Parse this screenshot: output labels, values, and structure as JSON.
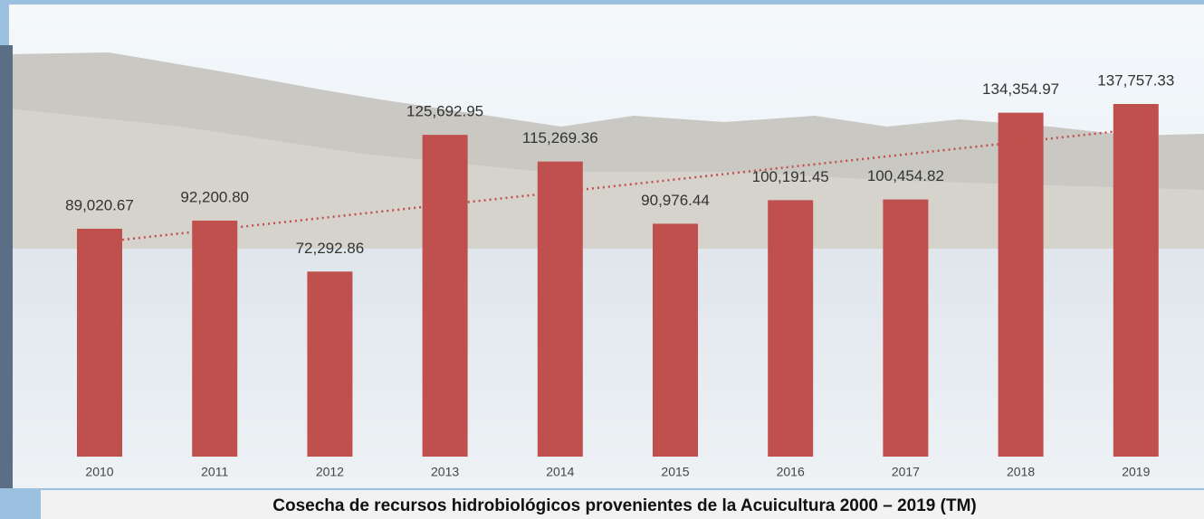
{
  "chart_data": {
    "type": "bar",
    "title": "Cosecha de recursos hidrobiológicos provenientes de la Acuicultura 2000 – 2019 (TM)",
    "categories": [
      "2010",
      "2011",
      "2012",
      "2013",
      "2014",
      "2015",
      "2016",
      "2017",
      "2018",
      "2019"
    ],
    "values": [
      89020.67,
      92200.8,
      72292.86,
      125692.95,
      115269.36,
      90976.44,
      100191.45,
      100454.82,
      134354.97,
      137757.33
    ],
    "value_labels": [
      "89,020.67",
      "92,200.80",
      "72,292.86",
      "125,692.95",
      "115,269.36",
      "90,976.44",
      "100,191.45",
      "100,454.82",
      "134,354.97",
      "137,757.33"
    ],
    "color": "#c0504d",
    "trendline": true
  }
}
